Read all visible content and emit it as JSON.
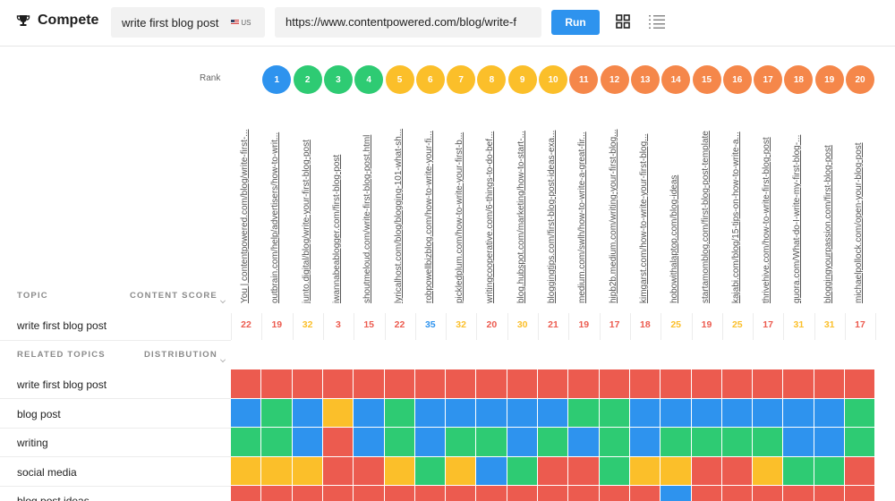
{
  "header": {
    "title": "Compete",
    "keyword": "write first blog post",
    "location": "US",
    "url": "https://www.contentpowered.com/blog/write-f",
    "run_label": "Run"
  },
  "rank_label": "Rank",
  "colors": {
    "red": "#ec5b4f",
    "green": "#2ecb73",
    "blue": "#2e93ee",
    "yellow": "#fbbf2a",
    "orange": "#f5874a"
  },
  "ranks": [
    {
      "num": "1",
      "color": "#2e93ee"
    },
    {
      "num": "2",
      "color": "#2ecb73"
    },
    {
      "num": "3",
      "color": "#2ecb73"
    },
    {
      "num": "4",
      "color": "#2ecb73"
    },
    {
      "num": "5",
      "color": "#fbbf2a"
    },
    {
      "num": "6",
      "color": "#fbbf2a"
    },
    {
      "num": "7",
      "color": "#fbbf2a"
    },
    {
      "num": "8",
      "color": "#fbbf2a"
    },
    {
      "num": "9",
      "color": "#fbbf2a"
    },
    {
      "num": "10",
      "color": "#fbbf2a"
    },
    {
      "num": "11",
      "color": "#f5874a"
    },
    {
      "num": "12",
      "color": "#f5874a"
    },
    {
      "num": "13",
      "color": "#f5874a"
    },
    {
      "num": "14",
      "color": "#f5874a"
    },
    {
      "num": "15",
      "color": "#f5874a"
    },
    {
      "num": "16",
      "color": "#f5874a"
    },
    {
      "num": "17",
      "color": "#f5874a"
    },
    {
      "num": "18",
      "color": "#f5874a"
    },
    {
      "num": "19",
      "color": "#f5874a"
    },
    {
      "num": "20",
      "color": "#f5874a"
    }
  ],
  "urls": [
    "You | contentpowered.com/blog/write-first-...",
    "outbrain.com/help/advertisers/how-to-writ...",
    "junto.digital/blog/write-your-first-blog-post",
    "iwannabeablogger.com/first-blog-post",
    "shoutmeloud.com/write-first-blog-post.html",
    "lyricalhost.com/blog/blogging-101-what-sh...",
    "robpowellbizblog.com/how-to-write-your-fi...",
    "pickledplum.com/how-to-write-your-first-b...",
    "writingcooperative.com/6-things-to-do-bef...",
    "blog.hubspot.com/marketing/how-to-start-...",
    "bloggingtips.com/first-blog-post-ideas-exa...",
    "medium.com/swlh/how-to-write-a-great-fir...",
    "hipb2b.medium.com/writing-your-first-blog...",
    "kimgarst.com/how-to-write-your-first-blog...",
    "hobowithalaptop.com/blog-ideas",
    "startamomblog.com/first-blog-post-template",
    "kajabi.com/blog/15-tips-on-how-to-write-a...",
    "thrivehive.com/how-to-write-first-blog-post",
    "quora.com/What-do-I-write-my-first-blog-...",
    "bloggingyourpassion.com/first-blog-post",
    "michaelpollock.com/open-your-blog-post"
  ],
  "section": {
    "topic": "TOPIC",
    "content_score": "CONTENT SCORE",
    "related_topics": "RELATED TOPICS",
    "distribution": "DISTRIBUTION"
  },
  "main_topic": "write first blog post",
  "scores": [
    {
      "value": "22",
      "color": "#ec5b4f"
    },
    {
      "value": "19",
      "color": "#ec5b4f"
    },
    {
      "value": "32",
      "color": "#fbbf2a"
    },
    {
      "value": "3",
      "color": "#ec5b4f"
    },
    {
      "value": "15",
      "color": "#ec5b4f"
    },
    {
      "value": "22",
      "color": "#ec5b4f"
    },
    {
      "value": "35",
      "color": "#2e93ee"
    },
    {
      "value": "32",
      "color": "#fbbf2a"
    },
    {
      "value": "20",
      "color": "#ec5b4f"
    },
    {
      "value": "30",
      "color": "#fbbf2a"
    },
    {
      "value": "21",
      "color": "#ec5b4f"
    },
    {
      "value": "19",
      "color": "#ec5b4f"
    },
    {
      "value": "17",
      "color": "#ec5b4f"
    },
    {
      "value": "18",
      "color": "#ec5b4f"
    },
    {
      "value": "25",
      "color": "#fbbf2a"
    },
    {
      "value": "19",
      "color": "#ec5b4f"
    },
    {
      "value": "25",
      "color": "#fbbf2a"
    },
    {
      "value": "17",
      "color": "#ec5b4f"
    },
    {
      "value": "31",
      "color": "#fbbf2a"
    },
    {
      "value": "31",
      "color": "#fbbf2a"
    },
    {
      "value": "17",
      "color": "#ec5b4f"
    }
  ],
  "related_topics": [
    {
      "label": "write first blog post",
      "cells": "RRRRRRRRRRRRRRRRRRRRR"
    },
    {
      "label": "blog post",
      "cells": "BGBYBGBBBBBGGBBBBBBBG"
    },
    {
      "label": "writing",
      "cells": "GGBRBGBGGBGBGBGGGGBBG"
    },
    {
      "label": "social media",
      "cells": "YYYRRYGYBGRRGYYRRYGGR"
    },
    {
      "label": "blog post ideas",
      "cells": "RRRRRRRRRRRRRRBRRRRRR"
    }
  ]
}
